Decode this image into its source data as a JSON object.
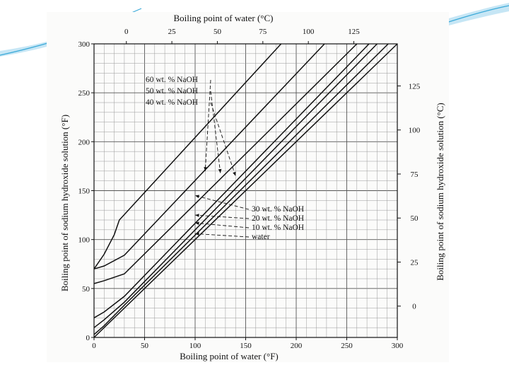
{
  "slide": {
    "accent": "#3aa9d8",
    "accent_light": "#b8e0f2"
  },
  "chart_data": {
    "type": "line",
    "title": "",
    "xlabel_bottom": "Boiling point of water (°F)",
    "xlabel_top": "Boiling point of water (°C)",
    "ylabel_left": "Boiling point of sodium hydroxide solution (°F)",
    "ylabel_right": "Boiling point of sodium hydroxide solution (°C)",
    "xlim": [
      0,
      300
    ],
    "ylim": [
      0,
      300
    ],
    "x_ticks": [
      "0",
      "50",
      "100",
      "150",
      "200",
      "250",
      "300"
    ],
    "y_ticks": [
      "0",
      "50",
      "100",
      "150",
      "200",
      "250",
      "300"
    ],
    "top_ticks": [
      "0",
      "25",
      "50",
      "75",
      "100",
      "125"
    ],
    "right_ticks": [
      "0",
      "25",
      "50",
      "75",
      "100",
      "125"
    ],
    "grid": true,
    "legend_upper": [
      "60 wt. % NaOH",
      "50 wt. % NaOH",
      "40 wt. % NaOH"
    ],
    "legend_lower": [
      "30 wt. % NaOH",
      "20 wt. % NaOH",
      "10 wt. % NaOH",
      "water"
    ],
    "series": [
      {
        "name": "60 wt. % NaOH",
        "x": [
          0,
          10,
          20,
          25,
          185
        ],
        "y": [
          70,
          85,
          105,
          120,
          300
        ]
      },
      {
        "name": "50 wt. % NaOH",
        "x": [
          0,
          10,
          30,
          228
        ],
        "y": [
          70,
          73,
          84,
          300
        ]
      },
      {
        "name": "40 wt. % NaOH",
        "x": [
          0,
          10,
          30,
          260
        ],
        "y": [
          55,
          58,
          65,
          300
        ]
      },
      {
        "name": "30 wt. % NaOH",
        "x": [
          0,
          10,
          30,
          272
        ],
        "y": [
          20,
          26,
          42,
          300
        ]
      },
      {
        "name": "20 wt. % NaOH",
        "x": [
          0,
          10,
          30,
          280
        ],
        "y": [
          10,
          18,
          36,
          300
        ]
      },
      {
        "name": "10 wt. % NaOH",
        "x": [
          0,
          10,
          30,
          291
        ],
        "y": [
          3,
          12,
          33,
          300
        ]
      },
      {
        "name": "water",
        "x": [
          0,
          300
        ],
        "y": [
          0,
          300
        ]
      }
    ]
  }
}
